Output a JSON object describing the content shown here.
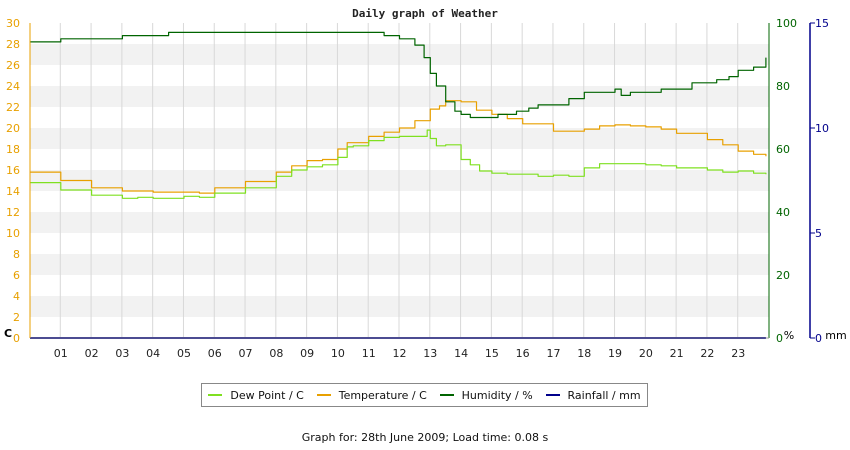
{
  "chart_data": {
    "type": "line",
    "title": "Daily graph of Weather",
    "x_label": "",
    "x_ticks": [
      "01",
      "02",
      "03",
      "04",
      "05",
      "06",
      "07",
      "08",
      "09",
      "10",
      "11",
      "12",
      "13",
      "14",
      "15",
      "16",
      "17",
      "18",
      "19",
      "20",
      "21",
      "22",
      "23"
    ],
    "xlim": [
      0,
      24
    ],
    "axes": {
      "left": {
        "unit_label": "C",
        "range": [
          0,
          30
        ],
        "ticks": [
          0,
          2,
          4,
          6,
          8,
          10,
          12,
          14,
          16,
          18,
          20,
          22,
          24,
          26,
          28,
          30
        ],
        "color": "#e8a000"
      },
      "right_humidity": {
        "unit_label": "%",
        "range": [
          0,
          100
        ],
        "ticks": [
          0,
          20,
          40,
          60,
          80,
          100
        ],
        "color": "#006400"
      },
      "right_rain": {
        "unit_label": "mm",
        "range": [
          0,
          15
        ],
        "ticks": [
          0,
          5,
          10,
          15
        ],
        "color": "#00008b"
      }
    },
    "grid": true,
    "series": [
      {
        "name": "Dew Point / C",
        "axis": "left",
        "color": "#7fe020",
        "x": [
          0,
          1,
          2,
          3,
          3.5,
          4,
          5,
          5.5,
          6,
          7,
          8,
          8.5,
          9,
          9.5,
          10,
          10.3,
          10.5,
          11,
          11.5,
          12,
          12.5,
          12.9,
          13,
          13.2,
          13.5,
          14,
          14.3,
          14.6,
          15,
          15.5,
          16,
          16.5,
          17,
          17.5,
          18,
          18.5,
          19,
          19.5,
          20,
          20.5,
          21,
          22,
          22.5,
          23,
          23.5,
          23.9
        ],
        "y": [
          14.8,
          14.1,
          13.6,
          13.3,
          13.4,
          13.3,
          13.5,
          13.4,
          13.8,
          14.3,
          15.4,
          16.0,
          16.3,
          16.5,
          17.2,
          18.2,
          18.3,
          18.8,
          19.1,
          19.2,
          19.2,
          19.8,
          19.0,
          18.3,
          18.4,
          17.0,
          16.5,
          15.9,
          15.7,
          15.6,
          15.6,
          15.4,
          15.5,
          15.4,
          16.2,
          16.6,
          16.6,
          16.6,
          16.5,
          16.4,
          16.2,
          16.0,
          15.8,
          15.9,
          15.7,
          15.6
        ]
      },
      {
        "name": "Temperature / C",
        "axis": "left",
        "color": "#e8a000",
        "x": [
          0,
          1,
          2,
          3,
          4,
          5,
          5.5,
          6,
          7,
          8,
          8.5,
          9,
          9.5,
          10,
          10.3,
          11,
          11.5,
          12,
          12.5,
          13,
          13.3,
          13.5,
          14,
          14.5,
          15,
          15.5,
          16,
          17,
          17.5,
          18,
          18.5,
          19,
          19.5,
          20,
          20.5,
          21,
          22,
          22.5,
          23,
          23.5,
          23.9
        ],
        "y": [
          15.8,
          15.0,
          14.3,
          14.0,
          13.9,
          13.9,
          13.8,
          14.3,
          14.9,
          15.8,
          16.4,
          16.9,
          17.0,
          18.0,
          18.6,
          19.2,
          19.6,
          20.0,
          20.7,
          21.8,
          22.1,
          22.6,
          22.5,
          21.7,
          21.3,
          20.9,
          20.4,
          19.7,
          19.7,
          19.9,
          20.2,
          20.3,
          20.2,
          20.1,
          19.9,
          19.5,
          18.9,
          18.4,
          17.8,
          17.5,
          17.3
        ]
      },
      {
        "name": "Humidity / %",
        "axis": "right_humidity",
        "color": "#006400",
        "x": [
          0,
          0.9,
          1.0,
          2.9,
          3.0,
          4.4,
          4.5,
          11.2,
          11.5,
          12.0,
          12.5,
          12.8,
          13.0,
          13.2,
          13.5,
          13.8,
          14.0,
          14.3,
          14.8,
          15.2,
          15.8,
          16.2,
          16.5,
          17.0,
          17.5,
          18.0,
          19.0,
          19.2,
          19.5,
          20.0,
          20.5,
          21.0,
          21.5,
          22.0,
          22.3,
          22.7,
          23.0,
          23.5,
          23.9
        ],
        "y": [
          94,
          94,
          95,
          95,
          96,
          96,
          97,
          97,
          96,
          95,
          93,
          89,
          84,
          80,
          75,
          72,
          71,
          70,
          70,
          71,
          72,
          73,
          74,
          74,
          76,
          78,
          79,
          77,
          78,
          78,
          79,
          79,
          81,
          81,
          82,
          83,
          85,
          86,
          89
        ]
      },
      {
        "name": "Rainfall / mm",
        "axis": "right_rain",
        "color": "#00008b",
        "x": [
          0,
          23.9
        ],
        "y": [
          0,
          0
        ]
      }
    ],
    "legend_position": "bottom-center"
  },
  "footer": {
    "text": "Graph for: 28th June 2009; Load time: 0.08 s"
  }
}
